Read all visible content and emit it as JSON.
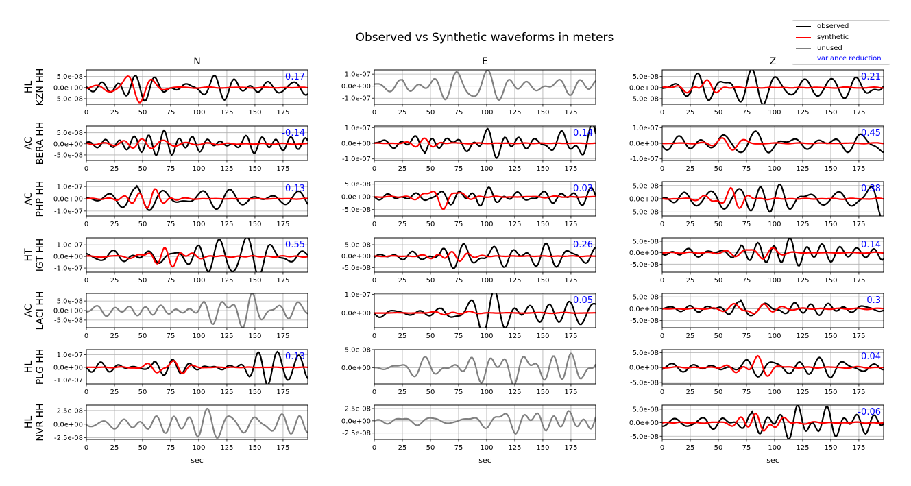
{
  "chart_data": {
    "type": "line",
    "title": "Observed vs Synthetic waveforms in meters",
    "xlabel": "sec",
    "x_ticks": [
      "0",
      "25",
      "50",
      "75",
      "100",
      "125",
      "150",
      "175"
    ],
    "xlim": [
      0,
      197
    ],
    "grid": true,
    "legend_position": "top-right",
    "legend": [
      {
        "label": "observed",
        "color": "#000000"
      },
      {
        "label": "synthetic",
        "color": "#ff0000"
      },
      {
        "label": "unused",
        "color": "#808080"
      },
      {
        "label": "variance reduction",
        "color": "#0000ff",
        "text_only": true
      }
    ],
    "components": [
      "N",
      "E",
      "Z"
    ],
    "stations": [
      {
        "name": "HL\nKZN HH",
        "panels": [
          {
            "used": true,
            "vr": "0.17",
            "ylim": [
              -7.5e-08,
              8e-08
            ],
            "yticks": [
              "5.0e-08",
              "0.0e+00",
              "-5.0e-08"
            ],
            "ytick_values": [
              5e-08,
              0,
              -5e-08
            ],
            "obs_amp": 6e-08,
            "syn_amp": 7e-08,
            "onset": 30
          },
          {
            "used": false,
            "vr": "",
            "ylim": [
              -1.5e-07,
              1.35e-07
            ],
            "yticks": [
              "1.0e-07",
              "0.0e+00",
              "-1.0e-07"
            ],
            "ytick_values": [
              1e-07,
              0,
              -1e-07
            ],
            "obs_amp": 1.3e-07,
            "syn_amp": 0,
            "onset": 25
          },
          {
            "used": true,
            "vr": "0.21",
            "ylim": [
              -7.5e-08,
              8e-08
            ],
            "yticks": [
              "5.0e-08",
              "0.0e+00",
              "-5.0e-08"
            ],
            "ytick_values": [
              5e-08,
              0,
              -5e-08
            ],
            "obs_amp": 6.5e-08,
            "syn_amp": 3.5e-08,
            "onset": 25
          }
        ]
      },
      {
        "name": "AC\nBERA HH",
        "panels": [
          {
            "used": true,
            "vr": "-0.14",
            "ylim": [
              -7.5e-08,
              8e-08
            ],
            "yticks": [
              "5.0e-08",
              "0.0e+00",
              "-5.0e-08"
            ],
            "ytick_values": [
              5e-08,
              0,
              -5e-08
            ],
            "obs_amp": 6e-08,
            "syn_amp": 7.5e-08,
            "onset": 45
          },
          {
            "used": true,
            "vr": "0.14",
            "ylim": [
              -1.1e-07,
              1.1e-07
            ],
            "yticks": [
              "1.0e-07",
              "0.0e+00",
              "-1.0e-07"
            ],
            "ytick_values": [
              1e-07,
              0,
              -1e-07
            ],
            "obs_amp": 9e-08,
            "syn_amp": 3e-08,
            "onset": 45
          },
          {
            "used": true,
            "vr": "0.45",
            "ylim": [
              -1.1e-07,
              1.1e-07
            ],
            "yticks": [
              "1.0e-07",
              "0.0e+00",
              "-1.0e-07"
            ],
            "ytick_values": [
              1e-07,
              0,
              -1e-07
            ],
            "obs_amp": 9e-08,
            "syn_amp": 7e-08,
            "onset": 50
          }
        ]
      },
      {
        "name": "AC\nPHP HH",
        "panels": [
          {
            "used": true,
            "vr": "0.13",
            "ylim": [
              -1.4e-07,
              1.4e-07
            ],
            "yticks": [
              "1.0e-07",
              "0.0e+00",
              "-1.0e-07"
            ],
            "ytick_values": [
              1e-07,
              0,
              -1e-07
            ],
            "obs_amp": 1.2e-07,
            "syn_amp": 6e-08,
            "onset": 45
          },
          {
            "used": true,
            "vr": "-0.03",
            "ylim": [
              -7.5e-08,
              6e-08
            ],
            "yticks": [
              "5.0e-08",
              "0.0e+00",
              "-5.0e-08"
            ],
            "ytick_values": [
              5e-08,
              0,
              -5e-08
            ],
            "obs_amp": 5e-08,
            "syn_amp": 5e-08,
            "onset": 50
          },
          {
            "used": true,
            "vr": "0.38",
            "ylim": [
              -6.5e-08,
              6.5e-08
            ],
            "yticks": [
              "5.0e-08",
              "0.0e+00",
              "-5.0e-08"
            ],
            "ytick_values": [
              5e-08,
              0,
              -5e-08
            ],
            "obs_amp": 5.5e-08,
            "syn_amp": 5e-08,
            "onset": 50
          }
        ]
      },
      {
        "name": "HT\nIGT HH",
        "panels": [
          {
            "used": true,
            "vr": "0.55",
            "ylim": [
              -1.35e-07,
              1.6e-07
            ],
            "yticks": [
              "1.0e-07",
              "0.0e+00",
              "-1.0e-07"
            ],
            "ytick_values": [
              1e-07,
              0,
              -1e-07
            ],
            "obs_amp": 1.4e-07,
            "syn_amp": 1.1e-07,
            "onset": 60
          },
          {
            "used": true,
            "vr": "0.26",
            "ylim": [
              -7e-08,
              8e-08
            ],
            "yticks": [
              "5.0e-08",
              "0.0e+00",
              "-5.0e-08"
            ],
            "ytick_values": [
              5e-08,
              0,
              -5e-08
            ],
            "obs_amp": 6e-08,
            "syn_amp": 5e-08,
            "onset": 60
          },
          {
            "used": true,
            "vr": "-0.14",
            "ylim": [
              -8.5e-08,
              6.5e-08
            ],
            "yticks": [
              "5.0e-08",
              "0.0e+00",
              "-5.0e-08"
            ],
            "ytick_values": [
              5e-08,
              0,
              -5e-08
            ],
            "obs_amp": 6e-08,
            "syn_amp": 7e-08,
            "onset": 70
          }
        ]
      },
      {
        "name": "AC\nLACI HH",
        "panels": [
          {
            "used": false,
            "vr": "",
            "ylim": [
              -9e-08,
              9e-08
            ],
            "yticks": [
              "5.0e-08",
              "0.0e+00",
              "-5.0e-08"
            ],
            "ytick_values": [
              5e-08,
              0,
              -5e-08
            ],
            "obs_amp": 8e-08,
            "syn_amp": 0,
            "onset": 55
          },
          {
            "used": true,
            "vr": "0.05",
            "ylim": [
              -8e-08,
              1.05e-07
            ],
            "yticks": [
              "1.0e-07",
              "0.0e+00"
            ],
            "ytick_values": [
              1e-07,
              0
            ],
            "obs_amp": 8e-08,
            "syn_amp": 4e-08,
            "onset": 60
          },
          {
            "used": true,
            "vr": "0.3",
            "ylim": [
              -8e-08,
              6.5e-08
            ],
            "yticks": [
              "5.0e-08",
              "0.0e+00",
              "-5.0e-08"
            ],
            "ytick_values": [
              5e-08,
              0,
              -5e-08
            ],
            "obs_amp": 5.5e-08,
            "syn_amp": 5e-08,
            "onset": 70
          }
        ]
      },
      {
        "name": "HL\nPLG HH",
        "panels": [
          {
            "used": true,
            "vr": "0.13",
            "ylim": [
              -1.3e-07,
              1.4e-07
            ],
            "yticks": [
              "1.0e-07",
              "0.0e+00",
              "-1.0e-07"
            ],
            "ytick_values": [
              1e-07,
              0,
              -1e-07
            ],
            "obs_amp": 1.1e-07,
            "syn_amp": 8e-08,
            "onset": 60
          },
          {
            "used": false,
            "vr": "",
            "ylim": [
              -4.5e-08,
              5e-08
            ],
            "yticks": [
              "5.0e-08",
              "0.0e+00"
            ],
            "ytick_values": [
              5e-08,
              0
            ],
            "obs_amp": 4.5e-08,
            "syn_amp": 0,
            "onset": 60
          },
          {
            "used": true,
            "vr": "0.04",
            "ylim": [
              -5.5e-08,
              6e-08
            ],
            "yticks": [
              "5.0e-08",
              "0.0e+00",
              "-5.0e-08"
            ],
            "ytick_values": [
              5e-08,
              0,
              -5e-08
            ],
            "obs_amp": 5e-08,
            "syn_amp": 4.5e-08,
            "onset": 70
          }
        ]
      },
      {
        "name": "HL\nNVR HH",
        "panels": [
          {
            "used": false,
            "vr": "",
            "ylim": [
              -2.8e-08,
              3.5e-08
            ],
            "yticks": [
              "2.5e-08",
              "0.0e+00",
              "-2.5e-08"
            ],
            "ytick_values": [
              2.5e-08,
              0,
              -2.5e-08
            ],
            "obs_amp": 3e-08,
            "syn_amp": 0,
            "onset": 75
          },
          {
            "used": false,
            "vr": "",
            "ylim": [
              -3.8e-08,
              3.2e-08
            ],
            "yticks": [
              "2.5e-08",
              "0.0e+00",
              "-2.5e-08"
            ],
            "ytick_values": [
              2.5e-08,
              0,
              -2.5e-08
            ],
            "obs_amp": 3e-08,
            "syn_amp": 0,
            "onset": 75
          },
          {
            "used": true,
            "vr": "-0.06",
            "ylim": [
              -6.2e-08,
              6.5e-08
            ],
            "yticks": [
              "5.0e-08",
              "0.0e+00",
              "-5.0e-08"
            ],
            "ytick_values": [
              5e-08,
              0,
              -5e-08
            ],
            "obs_amp": 5.5e-08,
            "syn_amp": 5.5e-08,
            "onset": 80
          }
        ]
      }
    ]
  }
}
